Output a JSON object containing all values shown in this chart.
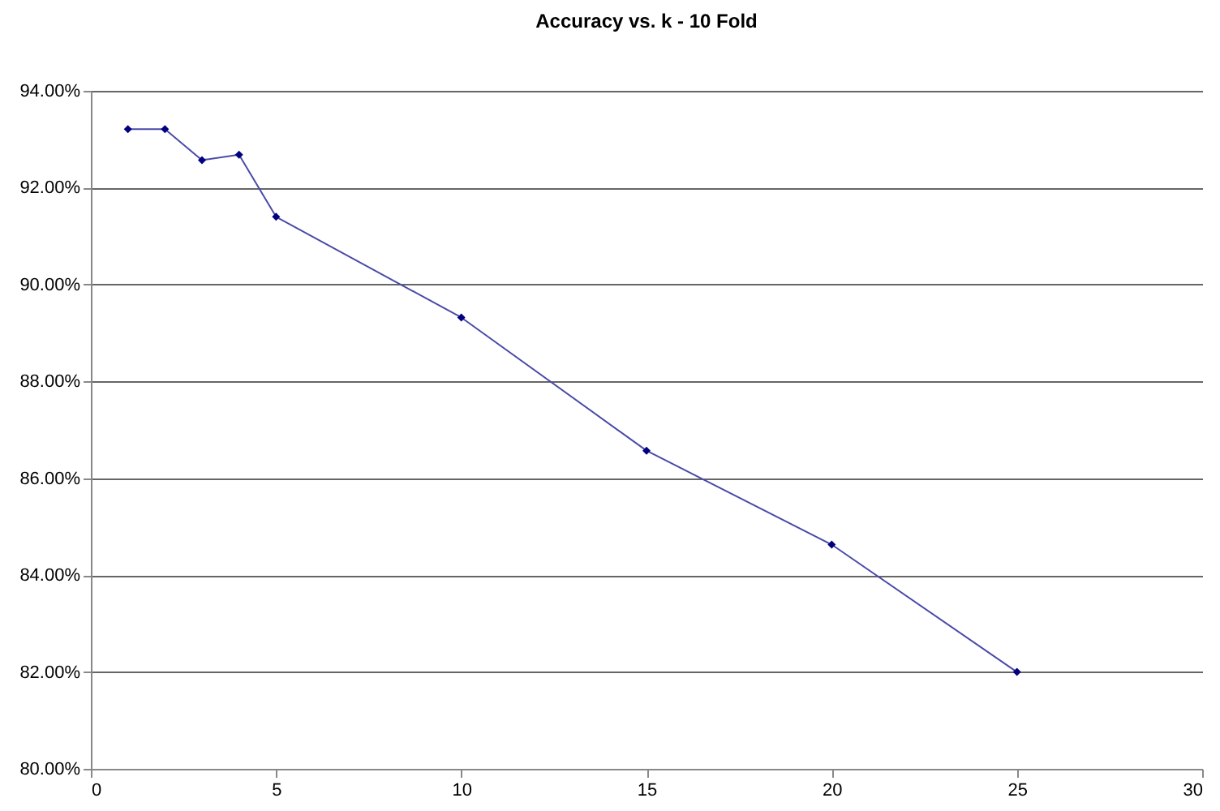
{
  "chart_data": {
    "type": "line",
    "title": "Accuracy vs. k - 10 Fold",
    "x": [
      1,
      2,
      3,
      4,
      5,
      10,
      15,
      20,
      25
    ],
    "series": [
      {
        "color": "#4a4aa8",
        "values": [
          93.21,
          93.21,
          92.57,
          92.68,
          91.4,
          89.32,
          86.57,
          84.63,
          82.0
        ]
      }
    ],
    "xlim": [
      0,
      30
    ],
    "xticks": [
      0,
      5,
      10,
      15,
      20,
      25,
      30
    ],
    "ylim": [
      80,
      94
    ],
    "yticks": [
      {
        "value": 80,
        "label": "80.00%"
      },
      {
        "value": 82,
        "label": "82.00%"
      },
      {
        "value": 84,
        "label": "84.00%"
      },
      {
        "value": 86,
        "label": "86.00%"
      },
      {
        "value": 88,
        "label": "88.00%"
      },
      {
        "value": 90,
        "label": "90.00%"
      },
      {
        "value": 92,
        "label": "92.00%"
      },
      {
        "value": 94,
        "label": "94.00%"
      }
    ],
    "grid": "y",
    "marker": "diamond",
    "line_style": "solid"
  }
}
